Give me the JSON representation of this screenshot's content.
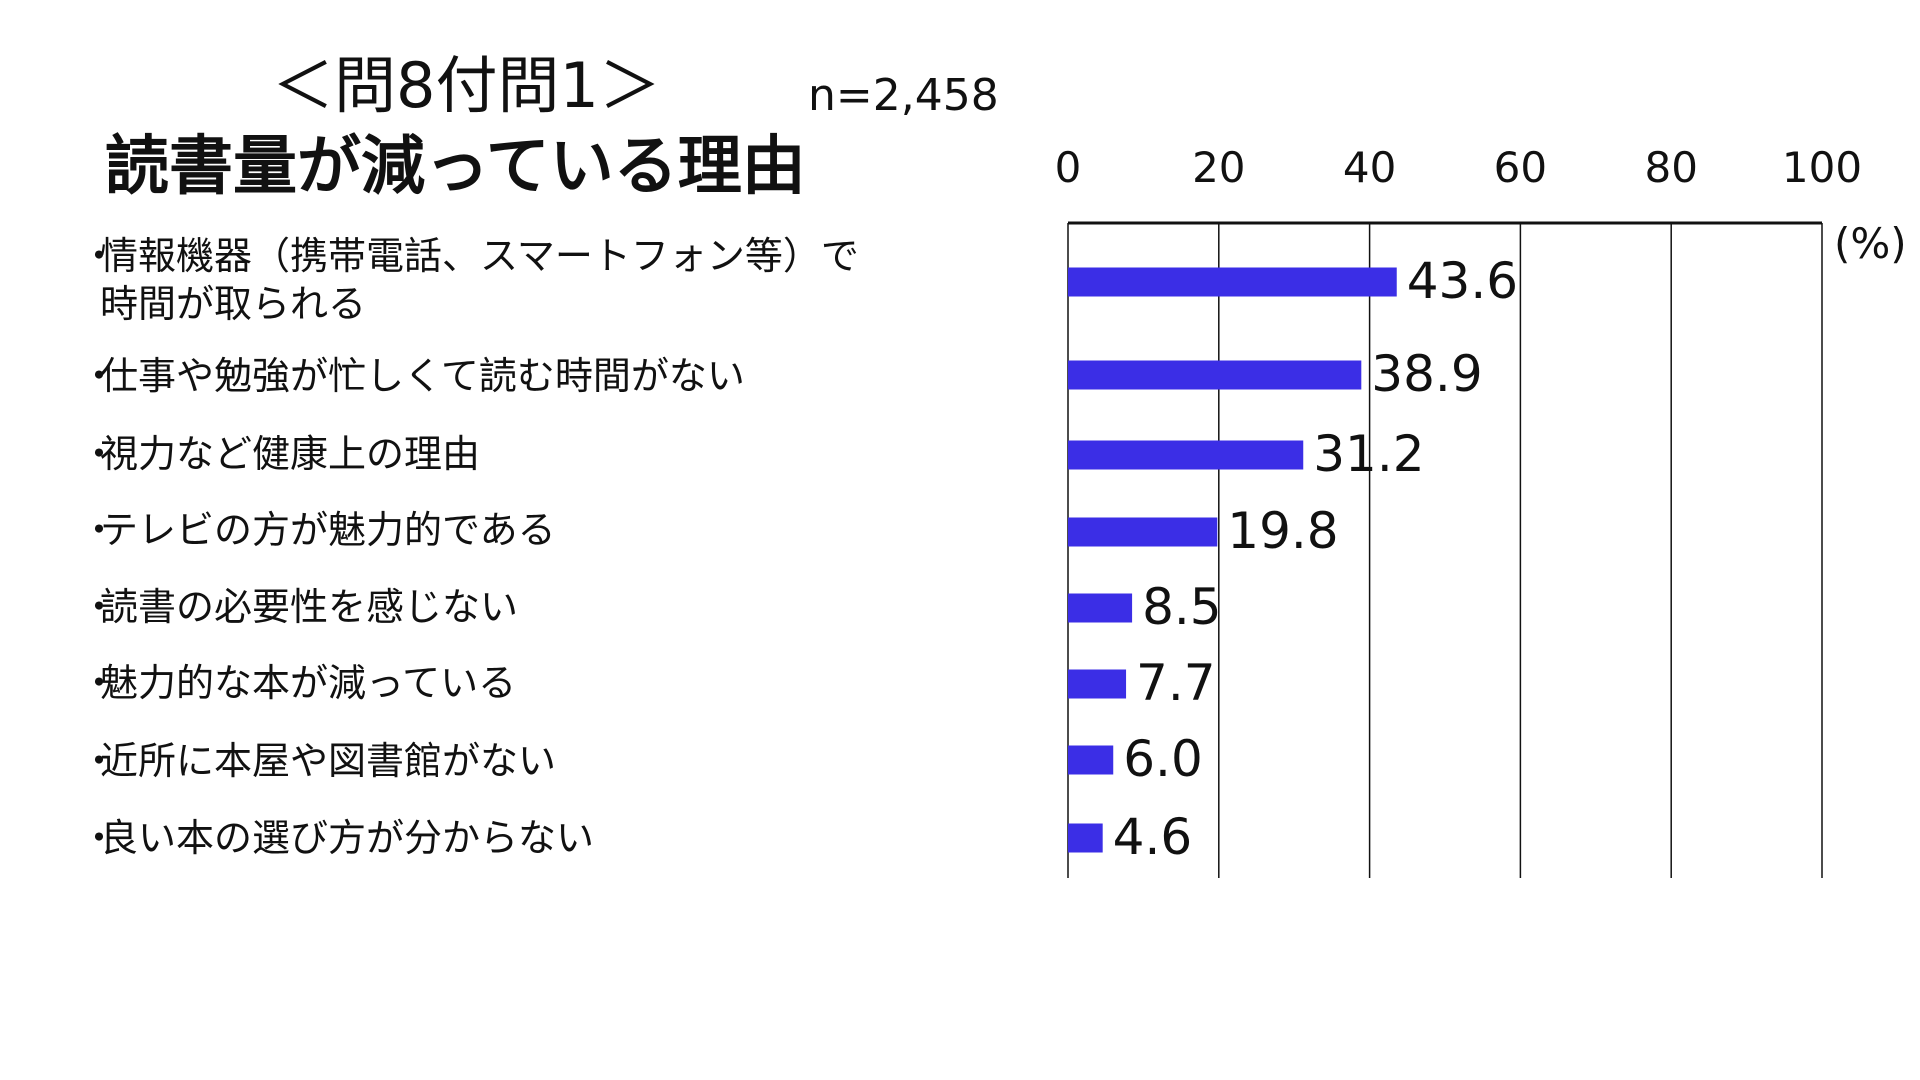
{
  "colors": {
    "bar": "#3b2ee6",
    "axis": "#111111",
    "grid": "#111111",
    "text": "#111111"
  },
  "header": {
    "title_line1": "＜問8付問1＞",
    "title_line2": "読書量が減っている理由",
    "sample_size": "n=2,458"
  },
  "chart_data": {
    "type": "bar",
    "orientation": "horizontal",
    "title": "読書量が減っている理由",
    "bullet": "・",
    "categories": [
      "情報機器（携帯電話、スマートフォン等）で時間が取られる",
      "仕事や勉強が忙しくて読む時間がない",
      "視力など健康上の理由",
      "テレビの方が魅力的である",
      "読書の必要性を感じない",
      "魅力的な本が減っている",
      "近所に本屋や図書館がない",
      "良い本の選び方が分からない"
    ],
    "category_lines": [
      [
        "情報機器（携帯電話、スマートフォン等）で",
        "時間が取られる"
      ],
      [
        "仕事や勉強が忙しくて読む時間がない"
      ],
      [
        "視力など健康上の理由"
      ],
      [
        "テレビの方が魅力的である"
      ],
      [
        "読書の必要性を感じない"
      ],
      [
        "魅力的な本が減っている"
      ],
      [
        "近所に本屋や図書館がない"
      ],
      [
        "良い本の選び方が分からない"
      ]
    ],
    "values": [
      43.6,
      38.9,
      31.2,
      19.8,
      8.5,
      7.7,
      6.0,
      4.6
    ],
    "value_labels": [
      "43.6",
      "38.9",
      "31.2",
      "19.8",
      "8.5",
      "7.7",
      "6.0",
      "4.6"
    ],
    "x_ticks": [
      0,
      20,
      40,
      60,
      80,
      100
    ],
    "x_tick_labels": [
      "0",
      "20",
      "40",
      "60",
      "80",
      "100"
    ],
    "xlim": [
      0,
      100
    ],
    "unit_label": "(%)",
    "grid": true,
    "axis_position": "top"
  }
}
